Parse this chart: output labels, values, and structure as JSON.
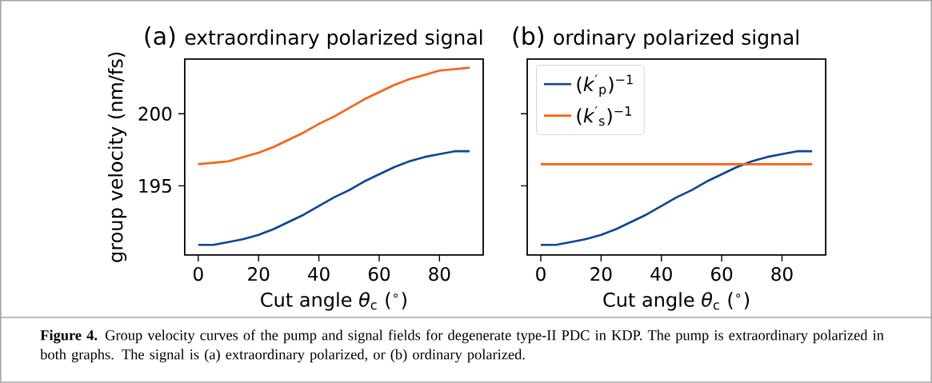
{
  "chart_data": [
    {
      "type": "line",
      "title": "extraordinary polarized signal",
      "xlabel": "Cut angle *θ*$_{c}$ ($^{∘}$)",
      "ylabel": "group velocity (nm/fs)",
      "annotations": [
        "(a)",
        "**Figure 4.**  Group velocity curves of the pump and signal fields for degenerate type-II PDC in KDP. The pump is extraordinary polarized in both graphs. The signal is (a) extraordinary polarized, or (b) ordinary polarized."
      ],
      "x": [
        0,
        5,
        10,
        15,
        20,
        25,
        30,
        35,
        40,
        45,
        50,
        55,
        60,
        65,
        70,
        75,
        80,
        85,
        90
      ],
      "series": [
        {
          "color": "#0b4596",
          "values": [
            190.9,
            190.9,
            191.1,
            191.3,
            191.6,
            192.0,
            192.5,
            193.0,
            193.6,
            194.2,
            194.7,
            195.3,
            195.8,
            196.3,
            196.7,
            197.0,
            197.2,
            197.4,
            197.4
          ]
        },
        {
          "color": "#ff5f0f",
          "values": [
            196.5,
            196.6,
            196.7,
            197.0,
            197.3,
            197.7,
            198.2,
            198.7,
            199.3,
            199.8,
            200.4,
            201.0,
            201.5,
            202.0,
            202.4,
            202.7,
            203.0,
            203.1,
            203.2
          ]
        }
      ],
      "xlim": [
        -4.5,
        94.5
      ],
      "ylim": [
        190.2,
        203.8
      ],
      "xticks": [
        0,
        20,
        40,
        60,
        80
      ],
      "yticks": [
        195,
        200
      ]
    },
    {
      "type": "line",
      "title": "ordinary polarized signal",
      "xlabel": "Cut angle *θ*$_{c}$ ($^{∘}$)",
      "annotations": [
        "(b)"
      ],
      "x": [
        0,
        5,
        10,
        15,
        20,
        25,
        30,
        35,
        40,
        45,
        50,
        55,
        60,
        65,
        70,
        75,
        80,
        85,
        90
      ],
      "series": [
        {
          "name": "(*k*$^{′}$$_{p}$)$^{−1}$",
          "color": "#0b4596",
          "values": [
            190.9,
            190.9,
            191.1,
            191.3,
            191.6,
            192.0,
            192.5,
            193.0,
            193.6,
            194.2,
            194.7,
            195.3,
            195.8,
            196.3,
            196.7,
            197.0,
            197.2,
            197.4,
            197.4
          ]
        },
        {
          "name": "(*k*$^{′}$$_{s}$)$^{−1}$",
          "color": "#ff5f0f",
          "values": [
            196.5,
            196.5,
            196.5,
            196.5,
            196.5,
            196.5,
            196.5,
            196.5,
            196.5,
            196.5,
            196.5,
            196.5,
            196.5,
            196.5,
            196.5,
            196.5,
            196.5,
            196.5,
            196.5
          ]
        }
      ],
      "xlim": [
        -4.5,
        94.5
      ],
      "ylim": [
        190.2,
        203.8
      ],
      "xticks": [
        0,
        20,
        40,
        60,
        80
      ],
      "yticks": [
        195,
        200
      ],
      "tick_labels": "x",
      "legend": "top left"
    }
  ]
}
